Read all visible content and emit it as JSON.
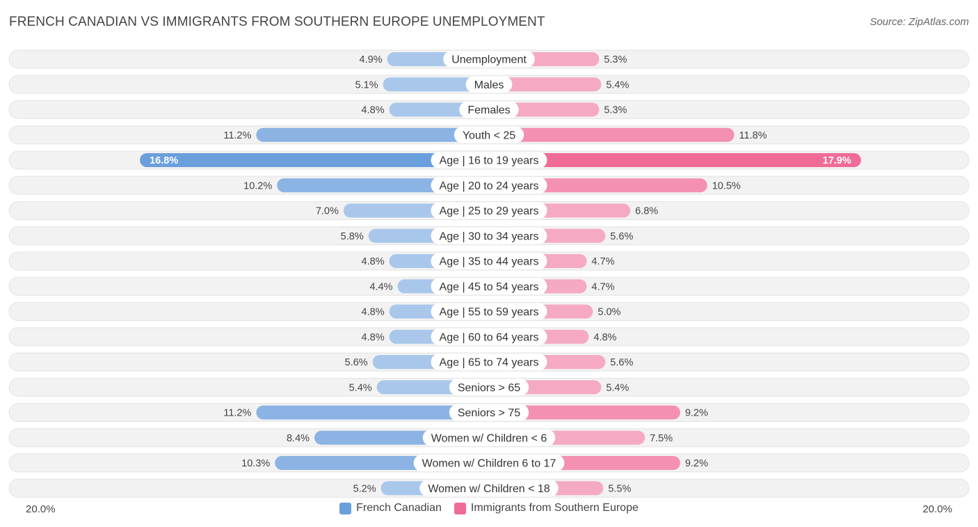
{
  "title": "FRENCH CANADIAN VS IMMIGRANTS FROM SOUTHERN EUROPE UNEMPLOYMENT",
  "source": "Source: ZipAtlas.com",
  "colors": {
    "left_dark": "#6a9fdc",
    "left_light": "#a8c7eb",
    "right_dark": "#f06b96",
    "right_light": "#f5a9c2",
    "row_bg": "#f2f2f2"
  },
  "chart_data": {
    "type": "bar",
    "orientation": "horizontal-diverging",
    "title": "FRENCH CANADIAN VS IMMIGRANTS FROM SOUTHERN EUROPE UNEMPLOYMENT",
    "axis_max": 20.0,
    "axis_left_label": "20.0%",
    "axis_right_label": "20.0%",
    "categories": [
      "Unemployment",
      "Males",
      "Females",
      "Youth < 25",
      "Age | 16 to 19 years",
      "Age | 20 to 24 years",
      "Age | 25 to 29 years",
      "Age | 30 to 34 years",
      "Age | 35 to 44 years",
      "Age | 45 to 54 years",
      "Age | 55 to 59 years",
      "Age | 60 to 64 years",
      "Age | 65 to 74 years",
      "Seniors > 65",
      "Seniors > 75",
      "Women w/ Children < 6",
      "Women w/ Children 6 to 17",
      "Women w/ Children < 18"
    ],
    "series": [
      {
        "name": "French Canadian",
        "values": [
          4.9,
          5.1,
          4.8,
          11.2,
          16.8,
          10.2,
          7.0,
          5.8,
          4.8,
          4.4,
          4.8,
          4.8,
          5.6,
          5.4,
          11.2,
          8.4,
          10.3,
          5.2
        ],
        "labels": [
          "4.9%",
          "5.1%",
          "4.8%",
          "11.2%",
          "16.8%",
          "10.2%",
          "7.0%",
          "5.8%",
          "4.8%",
          "4.4%",
          "4.8%",
          "4.8%",
          "5.6%",
          "5.4%",
          "11.2%",
          "8.4%",
          "10.3%",
          "5.2%"
        ]
      },
      {
        "name": "Immigrants from Southern Europe",
        "values": [
          5.3,
          5.4,
          5.3,
          11.8,
          17.9,
          10.5,
          6.8,
          5.6,
          4.7,
          4.7,
          5.0,
          4.8,
          5.6,
          5.4,
          9.2,
          7.5,
          9.2,
          5.5
        ],
        "labels": [
          "5.3%",
          "5.4%",
          "5.3%",
          "11.8%",
          "17.9%",
          "10.5%",
          "6.8%",
          "5.6%",
          "4.7%",
          "4.7%",
          "5.0%",
          "4.8%",
          "5.6%",
          "5.4%",
          "9.2%",
          "7.5%",
          "9.2%",
          "5.5%"
        ]
      }
    ],
    "highlight_index": 4,
    "legend": [
      "French Canadian",
      "Immigrants from Southern Europe"
    ]
  }
}
